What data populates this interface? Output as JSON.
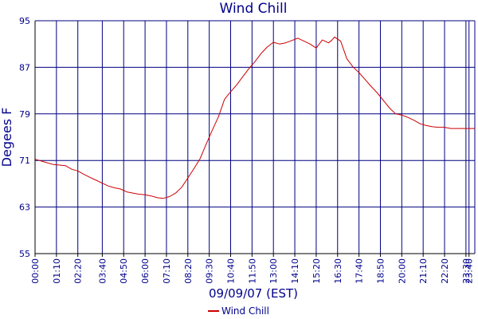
{
  "colors": {
    "grid": "#000080",
    "axis": "#000000",
    "series": "#cc0000",
    "text": "#00008b",
    "background": "#ffffff"
  },
  "chart_data": {
    "type": "line",
    "title": "Wind Chill",
    "xlabel": "09/09/07 (EST)",
    "ylabel": "Degees F",
    "ylim": [
      55,
      95
    ],
    "yticks": [
      55,
      63,
      71,
      79,
      87,
      95
    ],
    "xlim": [
      "00:00",
      "23:59"
    ],
    "xticks": [
      "00:00",
      "01:10",
      "02:20",
      "03:40",
      "04:50",
      "06:00",
      "07:10",
      "08:20",
      "09:30",
      "10:40",
      "11:50",
      "13:00",
      "14:10",
      "15:20",
      "16:30",
      "17:40",
      "18:50",
      "20:00",
      "21:10",
      "22:20",
      "23:30",
      "23:40"
    ],
    "grid": true,
    "legend": "bottom-center",
    "series": [
      {
        "name": "Wind Chill",
        "x": [
          "00:00",
          "00:20",
          "00:40",
          "01:00",
          "01:20",
          "01:40",
          "02:00",
          "02:20",
          "02:40",
          "03:00",
          "03:20",
          "03:40",
          "04:00",
          "04:20",
          "04:40",
          "05:00",
          "05:20",
          "05:40",
          "06:00",
          "06:20",
          "06:40",
          "07:00",
          "07:20",
          "07:40",
          "08:00",
          "08:20",
          "08:40",
          "09:00",
          "09:20",
          "09:40",
          "10:00",
          "10:20",
          "10:40",
          "11:00",
          "11:20",
          "11:40",
          "12:00",
          "12:20",
          "12:40",
          "13:00",
          "13:20",
          "13:40",
          "14:00",
          "14:20",
          "14:40",
          "15:00",
          "15:20",
          "15:40",
          "16:00",
          "16:10",
          "16:20",
          "16:40",
          "17:00",
          "17:20",
          "17:40",
          "18:00",
          "18:20",
          "18:40",
          "19:00",
          "19:20",
          "19:40",
          "20:00",
          "20:20",
          "20:40",
          "21:00",
          "21:20",
          "21:40",
          "22:00",
          "22:20",
          "22:40",
          "23:00",
          "23:20",
          "23:40",
          "23:59"
        ],
        "y": [
          71.2,
          70.9,
          70.6,
          70.3,
          70.2,
          70.1,
          69.5,
          69.2,
          68.6,
          68.1,
          67.6,
          67.1,
          66.6,
          66.3,
          66.1,
          65.6,
          65.4,
          65.2,
          65.1,
          64.9,
          64.6,
          64.5,
          64.8,
          65.4,
          66.4,
          68.0,
          69.6,
          71.3,
          73.8,
          76.2,
          78.5,
          81.5,
          82.8,
          84.0,
          85.4,
          86.8,
          88.0,
          89.4,
          90.5,
          91.3,
          91.0,
          91.2,
          91.6,
          92.0,
          91.5,
          91.0,
          90.3,
          91.7,
          91.2,
          91.6,
          92.2,
          91.5,
          88.5,
          87.1,
          86.1,
          84.9,
          83.7,
          82.6,
          81.3,
          80.0,
          79.0,
          78.8,
          78.4,
          77.9,
          77.3,
          77.0,
          76.8,
          76.7,
          76.7,
          76.5,
          76.5,
          76.5,
          76.5,
          76.5
        ]
      }
    ]
  }
}
